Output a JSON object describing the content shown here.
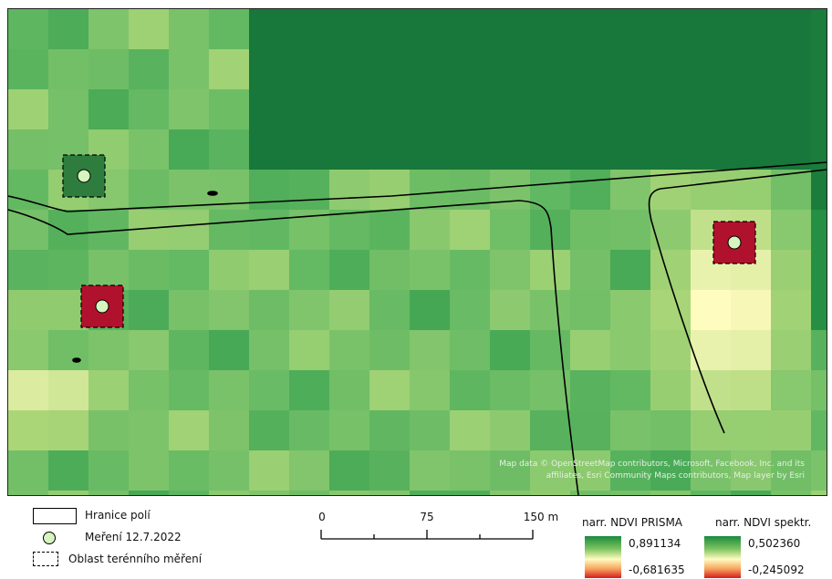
{
  "map": {
    "attribution_line1": "Map data © OpenStreetMap contributors, Microsoft, Facebook, Inc. and its",
    "attribution_line2": "affiliates, Esri Community Maps contributors, Map layer by Esri",
    "colors": {
      "field_boundary": "#000000",
      "marker_fill": "#d6f5bf",
      "high_ndvi": "#1a8a3e",
      "low_ndvi": "#d7191c",
      "plot_high": "#2e7d3f",
      "plot_low": "#b0122e"
    }
  },
  "legend": {
    "boundary_label": "Hranice polí",
    "measurement_label": "Meření 12.7.2022",
    "area_label": "Oblast terénního měření"
  },
  "scale_bar": {
    "labels": [
      "0",
      "75",
      "150 m"
    ]
  },
  "ndvi_prisma": {
    "title": "narr. NDVI PRISMA",
    "max": "0,891134",
    "min": "-0,681635"
  },
  "ndvi_spektr": {
    "title": "narr. NDVI spektr.",
    "max": "0,502360",
    "min": "-0,245092"
  }
}
